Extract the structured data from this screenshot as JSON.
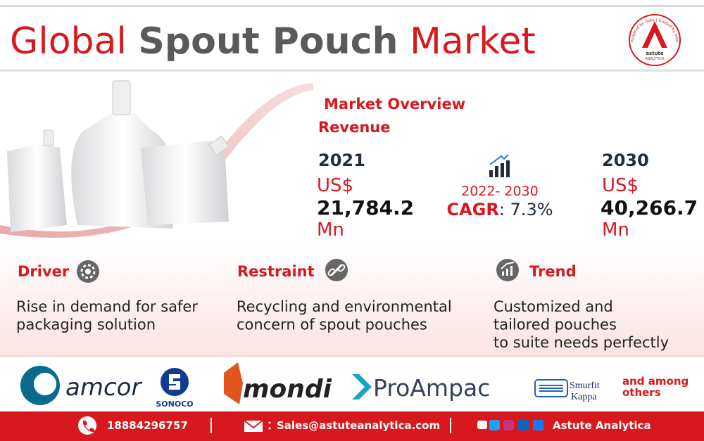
{
  "header": {
    "title": {
      "part1": "Global",
      "part2": "Spout Pouch",
      "part3": "Market"
    },
    "logo": {
      "tagline": "Powered by Data | Guided by Intelligence",
      "name": "astute",
      "subname": "ANALYTICA"
    }
  },
  "overview": {
    "heading": "Market Overview",
    "subheading": "Revenue",
    "start": {
      "year": "2021",
      "currency": "US$",
      "value": "21,784.2",
      "unit": "Mn"
    },
    "cagr": {
      "period": "2022- 2030",
      "label": "CAGR",
      "value": ": 7.3%"
    },
    "end": {
      "year": "2030",
      "currency": "US$",
      "value": "40,266.7",
      "unit": "Mn"
    }
  },
  "factors": [
    {
      "title": "Driver",
      "lines": [
        "Rise in demand for safer",
        "packaging solution"
      ]
    },
    {
      "title": "Restraint",
      "lines": [
        "Recycling and environmental",
        "concern of spout pouches"
      ]
    },
    {
      "title": "Trend",
      "lines": [
        "Customized and",
        "tailored pouches",
        "to suite needs perfectly"
      ]
    }
  ],
  "companies": {
    "names": [
      "amcor",
      "SONOCO",
      "mondi",
      "ProAmpac",
      "Smurfit",
      "Kappa"
    ],
    "others": [
      "and among",
      "others"
    ]
  },
  "footer": {
    "phone": "18884296757",
    "email": "Sales@astuteanalytica.com",
    "brand": "Astute Analytica"
  }
}
